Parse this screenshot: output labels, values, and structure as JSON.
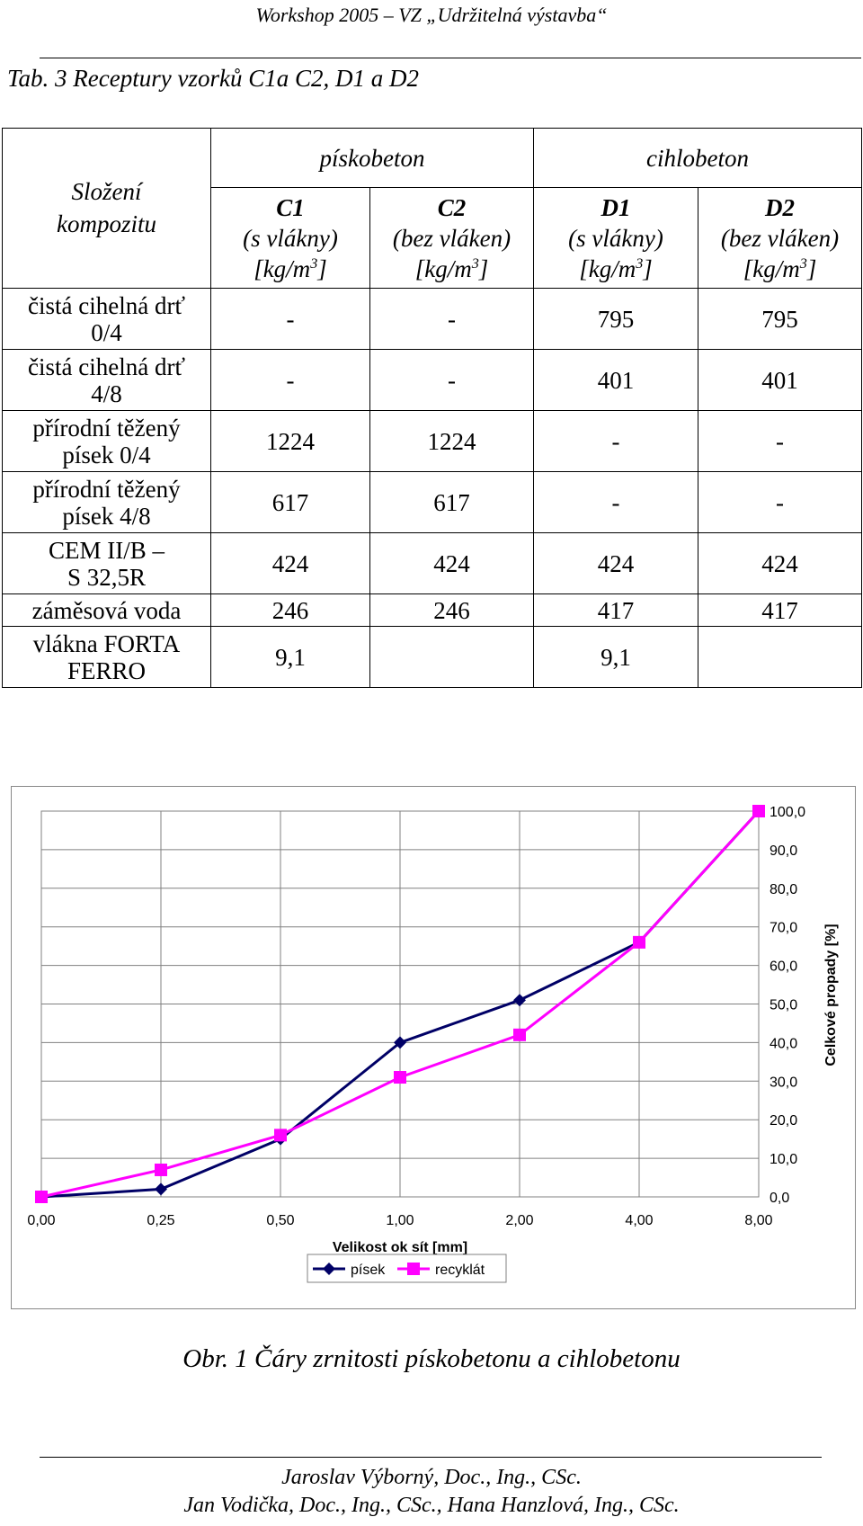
{
  "header": {
    "running_title": "Workshop 2005 – VZ „Udržitelná výstavba“"
  },
  "table_caption": "Tab. 3  Receptury vzorků C1a C2, D1 a D2",
  "table": {
    "corner_label_line1": "Složení",
    "corner_label_line2": "kompozitu",
    "groups": [
      "pískobeton",
      "cihlobeton"
    ],
    "columns": [
      {
        "code": "C1",
        "note": "(s vlákny)",
        "unit": "[kg/m",
        "exp": "3",
        "unit_close": "]"
      },
      {
        "code": "C2",
        "note": "(bez vláken)",
        "unit": "[kg/m",
        "exp": "3",
        "unit_close": "]"
      },
      {
        "code": "D1",
        "note": "(s vlákny)",
        "unit": "[kg/m",
        "exp": "3",
        "unit_close": "]"
      },
      {
        "code": "D2",
        "note": "(bez vláken)",
        "unit": "[kg/m",
        "exp": "3",
        "unit_close": "]"
      }
    ],
    "rows": [
      {
        "label1": "čistá cihelná drť",
        "label2": "0/4",
        "values": [
          "-",
          "-",
          "795",
          "795"
        ]
      },
      {
        "label1": "čistá cihelná drť",
        "label2": "4/8",
        "values": [
          "-",
          "-",
          "401",
          "401"
        ]
      },
      {
        "label1": "přírodní těžený",
        "label2": "písek 0/4",
        "values": [
          "1224",
          "1224",
          "-",
          "-"
        ]
      },
      {
        "label1": "přírodní těžený",
        "label2": "písek 4/8",
        "values": [
          "617",
          "617",
          "-",
          "-"
        ]
      },
      {
        "label1": "CEM II/B –",
        "label2": "S 32,5R",
        "values": [
          "424",
          "424",
          "424",
          "424"
        ]
      },
      {
        "label1": "záměsová voda",
        "label2": "",
        "values": [
          "246",
          "246",
          "417",
          "417"
        ]
      },
      {
        "label1": "vlákna FORTA",
        "label2": "FERRO",
        "values": [
          "9,1",
          "",
          "9,1",
          ""
        ]
      }
    ]
  },
  "chart_data": {
    "type": "line",
    "categories": [
      "0,00",
      "0,25",
      "0,50",
      "1,00",
      "2,00",
      "4,00",
      "8,00"
    ],
    "xlabel": "Velikost ok sít [mm]",
    "ylabel": "Celkové propady [%]",
    "ylim": [
      0,
      100
    ],
    "yticks": [
      "0,0",
      "10,0",
      "20,0",
      "30,0",
      "40,0",
      "50,0",
      "60,0",
      "70,0",
      "80,0",
      "90,0",
      "100,0"
    ],
    "y_axis_side": "right",
    "grid": true,
    "legend_position": "bottom",
    "series": [
      {
        "name": "písek",
        "color": "#000066",
        "marker": "diamond",
        "values": [
          0,
          2,
          15,
          40,
          51,
          66,
          100
        ]
      },
      {
        "name": "recyklát",
        "color": "#ff00ff",
        "marker": "square",
        "values": [
          0,
          7,
          16,
          31,
          42,
          66,
          100
        ]
      }
    ]
  },
  "figure_caption": "Obr. 1 Čáry zrnitosti pískobetonu a cihlobetonu",
  "footer": {
    "line1": "Jaroslav Výborný, Doc., Ing., CSc.",
    "line2": "Jan Vodička, Doc., Ing., CSc., Hana Hanzlová, Ing., CSc."
  }
}
